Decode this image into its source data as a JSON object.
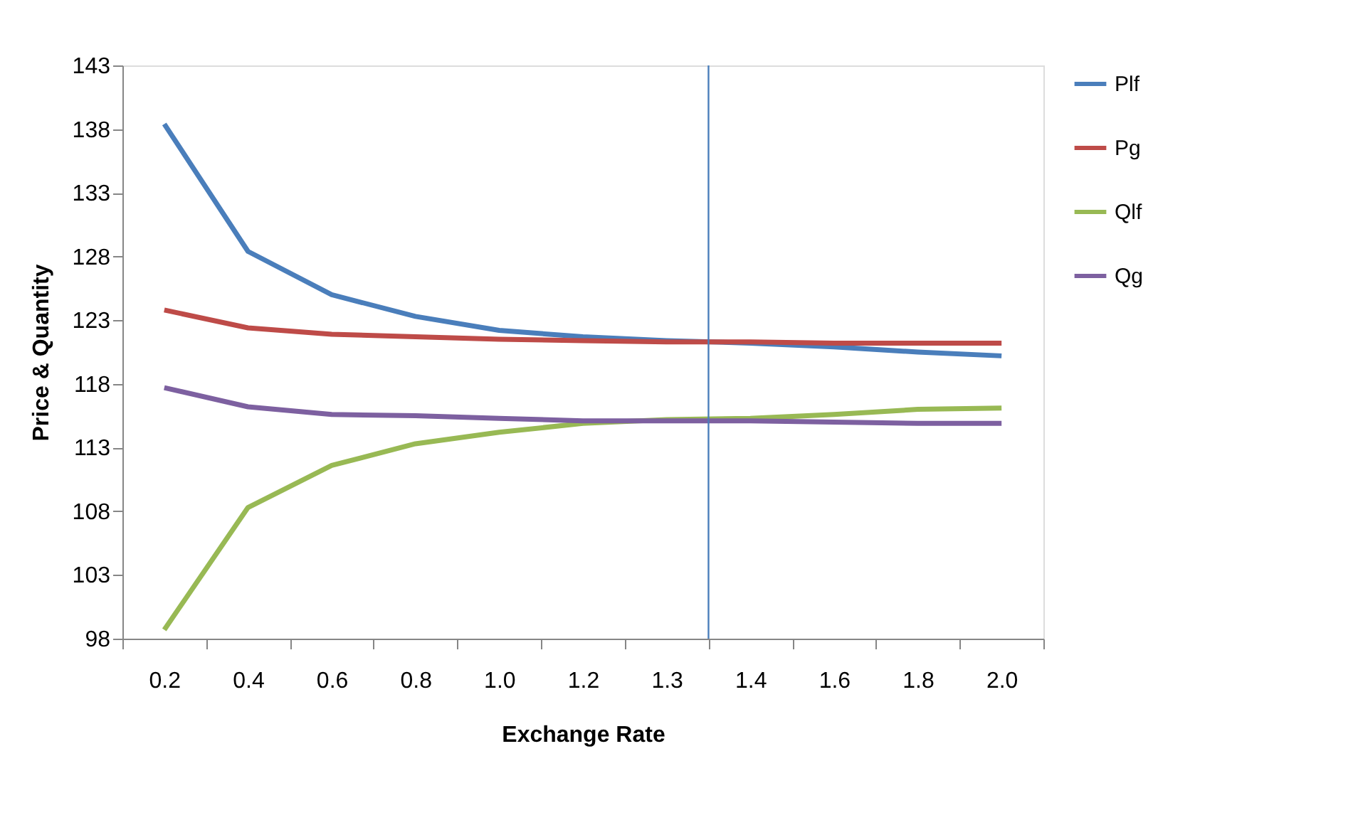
{
  "chart_data": {
    "type": "line",
    "xlabel": "Exchange Rate",
    "ylabel": "Price & Quantity",
    "categories": [
      "0.2",
      "0.4",
      "0.6",
      "0.8",
      "1.0",
      "1.2",
      "1.3",
      "1.4",
      "1.6",
      "1.8",
      "2.0"
    ],
    "series": [
      {
        "name": "Plf",
        "color": "#4a7ebb",
        "values": [
          138.4,
          128.4,
          125.0,
          123.3,
          122.2,
          121.7,
          121.4,
          121.2,
          120.9,
          120.5,
          120.2
        ]
      },
      {
        "name": "Pg",
        "color": "#be4b48",
        "values": [
          123.8,
          122.4,
          121.9,
          121.7,
          121.5,
          121.4,
          121.3,
          121.3,
          121.2,
          121.2,
          121.2
        ]
      },
      {
        "name": "Qlf",
        "color": "#98b954",
        "values": [
          98.7,
          108.3,
          111.6,
          113.3,
          114.2,
          114.9,
          115.2,
          115.3,
          115.6,
          116.0,
          116.1
        ]
      },
      {
        "name": "Qg",
        "color": "#7d60a0",
        "values": [
          117.7,
          116.2,
          115.6,
          115.5,
          115.3,
          115.1,
          115.1,
          115.1,
          115.0,
          114.9,
          114.9
        ]
      }
    ],
    "ylim": [
      98,
      143
    ],
    "yticks": [
      98,
      103,
      108,
      113,
      118,
      123,
      128,
      133,
      138,
      143
    ],
    "ref_lines": [
      {
        "axis": "x",
        "value": "1.4",
        "color": "#4a7ebb"
      }
    ],
    "legend": "right",
    "grid": false,
    "marker": "none",
    "line_style": "solid"
  }
}
